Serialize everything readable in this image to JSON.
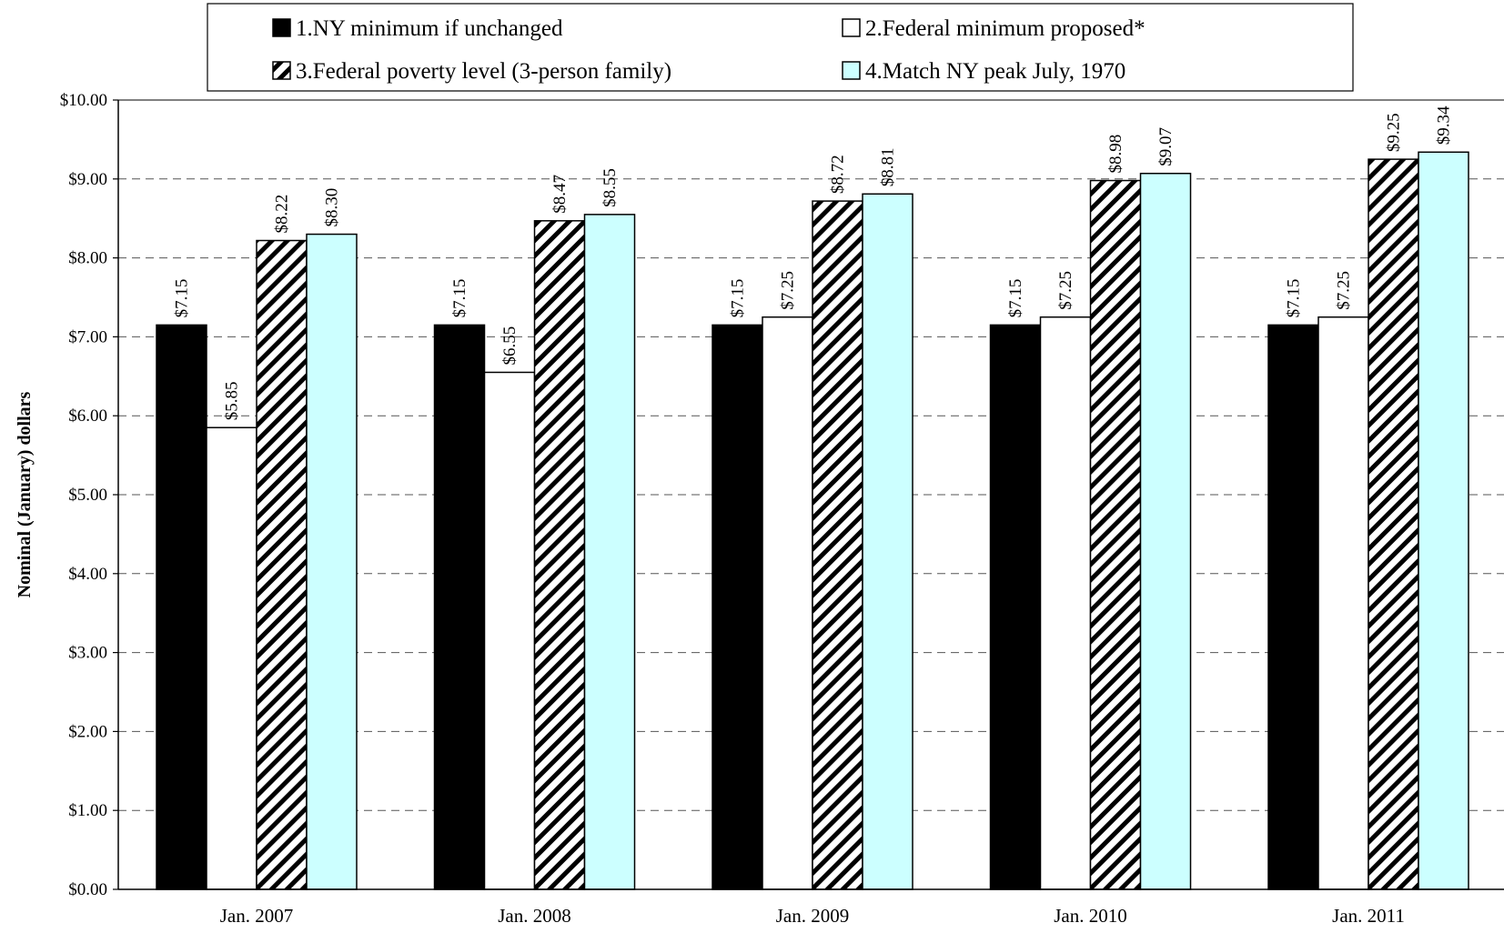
{
  "chart_data": {
    "type": "bar",
    "title": "",
    "xlabel": "",
    "ylabel": "Nominal (January) dollars",
    "ylim": [
      0,
      10
    ],
    "yticks": [
      0,
      1,
      2,
      3,
      4,
      5,
      6,
      7,
      8,
      9,
      10
    ],
    "ytick_labels": [
      "$0.00",
      "$1.00",
      "$2.00",
      "$3.00",
      "$4.00",
      "$5.00",
      "$6.00",
      "$7.00",
      "$8.00",
      "$9.00",
      "$10.00"
    ],
    "grid": "horizontal dashed",
    "legend_position": "top",
    "categories": [
      "Jan. 2007",
      "Jan. 2008",
      "Jan. 2009",
      "Jan. 2010",
      "Jan. 2011"
    ],
    "series": [
      {
        "name": "1.NY minimum if unchanged",
        "fill": "#000000",
        "pattern": "solid",
        "values": [
          7.15,
          7.15,
          7.15,
          7.15,
          7.15
        ],
        "labels": [
          "$7.15",
          "$7.15",
          "$7.15",
          "$7.15",
          "$7.15"
        ]
      },
      {
        "name": "2.Federal minimum proposed*",
        "fill": "#ffffff",
        "pattern": "solid",
        "values": [
          5.85,
          6.55,
          7.25,
          7.25,
          7.25
        ],
        "labels": [
          "$5.85",
          "$6.55",
          "$7.25",
          "$7.25",
          "$7.25"
        ]
      },
      {
        "name": "3.Federal poverty level (3-person family)",
        "fill": "#ffffff",
        "pattern": "diagonal-stripes",
        "values": [
          8.22,
          8.47,
          8.72,
          8.98,
          9.25
        ],
        "labels": [
          "$8.22",
          "$8.47",
          "$8.72",
          "$8.98",
          "$9.25"
        ]
      },
      {
        "name": "4.Match NY peak July, 1970",
        "fill": "#ccffff",
        "pattern": "solid",
        "values": [
          8.3,
          8.55,
          8.81,
          9.07,
          9.34
        ],
        "labels": [
          "$8.30",
          "$8.55",
          "$8.81",
          "$9.07",
          "$9.34"
        ]
      }
    ]
  }
}
